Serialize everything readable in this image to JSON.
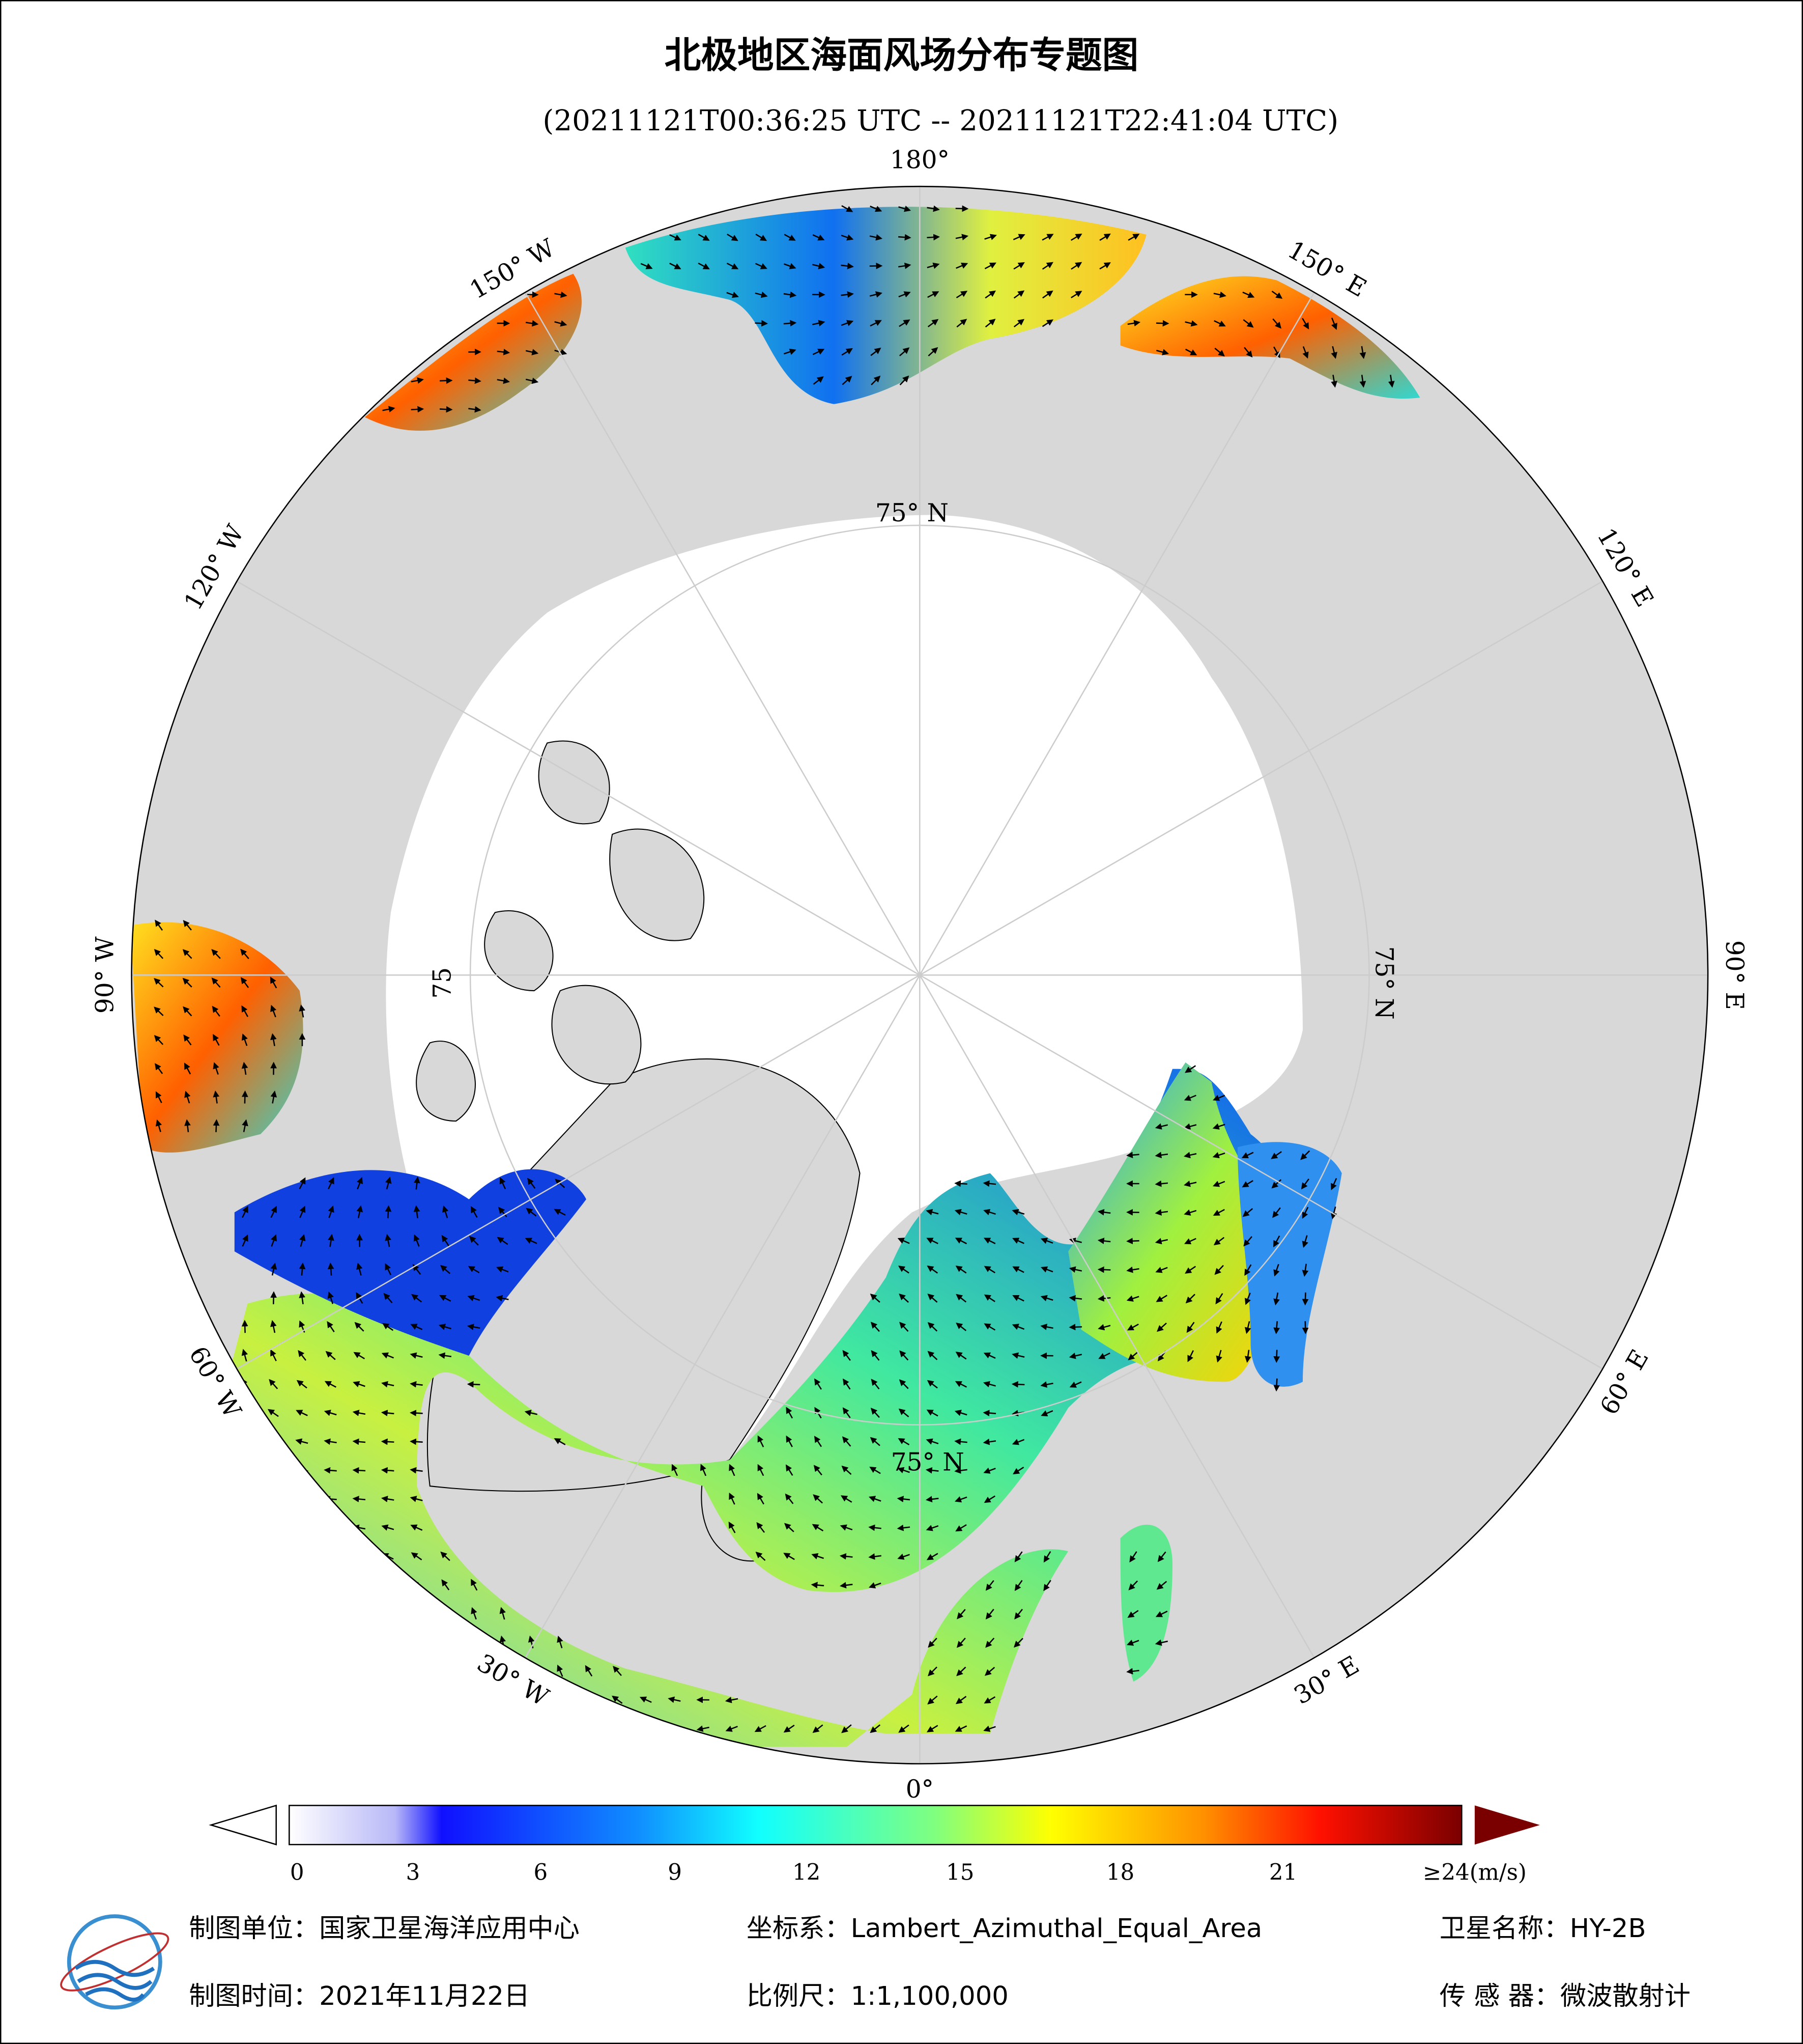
{
  "header": {
    "title": "北极地区海面风场分布专题图",
    "subtitle": "(20211121T00:36:25 UTC -- 20211121T22:41:04 UTC)"
  },
  "map": {
    "lon_labels": [
      "180°",
      "150° E",
      "120° E",
      "90° E",
      "60° E",
      "30° E",
      "0°",
      "30° W",
      "60° W",
      "90° W",
      "120° W",
      "150° W"
    ],
    "lat_labels": [
      "75° N",
      "75° N",
      "75° N",
      "75"
    ]
  },
  "colorbar": {
    "ticks": [
      0,
      3,
      6,
      9,
      12,
      15,
      18,
      21
    ],
    "max_label": "≥24(m/s)"
  },
  "footer": {
    "unit": "制图单位：国家卫星海洋应用中心",
    "crs": "坐标系：Lambert_Azimuthal_Equal_Area",
    "satellite": "卫星名称：HY-2B",
    "date": "制图时间：2021年11月22日",
    "scale": "比例尺：1:1,100,000",
    "sensor": "传 感 器：微波散射计"
  }
}
